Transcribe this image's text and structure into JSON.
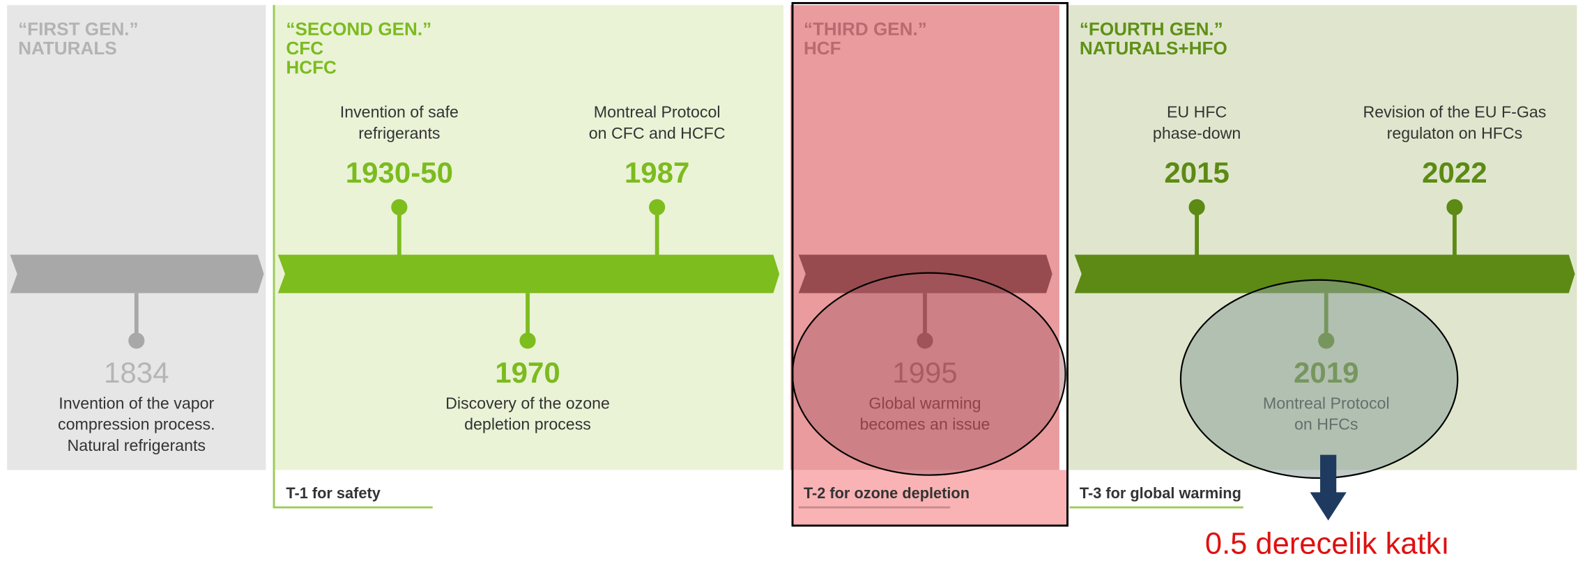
{
  "generations": [
    {
      "label": [
        "“FIRST GEN.”",
        "NATURALS"
      ]
    },
    {
      "label": [
        "“SECOND GEN.”",
        "CFC",
        "HCFC"
      ]
    },
    {
      "label": [
        "“THIRD GEN.”",
        "HCF"
      ]
    },
    {
      "label": [
        "“FOURTH GEN.”",
        "NATURALS+HFO"
      ]
    }
  ],
  "events": [
    {
      "year": "1834",
      "description": [
        "Invention of the vapor",
        "compression process.",
        "Natural refrigerants"
      ]
    },
    {
      "year": "1930-50",
      "description": [
        "Invention of safe",
        "refrigerants"
      ]
    },
    {
      "year": "1970",
      "description": [
        "Discovery of the ozone",
        "depletion process"
      ]
    },
    {
      "year": "1987",
      "description": [
        "Montreal Protocol",
        "on CFC and HCFC"
      ]
    },
    {
      "year": "1995",
      "description": [
        "Global warming",
        "becomes an issue"
      ]
    },
    {
      "year": "2015",
      "description": [
        "EU HFC",
        "phase-down"
      ]
    },
    {
      "year": "2019",
      "description": [
        "Montreal Protocol",
        "on HFCs"
      ]
    },
    {
      "year": "2022",
      "description": [
        "Revision of the EU F-Gas",
        "regulaton on HFCs"
      ]
    }
  ],
  "footnotes": [
    "T-1 for safety",
    "T-2 for ozone depletion",
    "T-3 for global warming"
  ],
  "annotation": "0.5 derecelik katkı"
}
